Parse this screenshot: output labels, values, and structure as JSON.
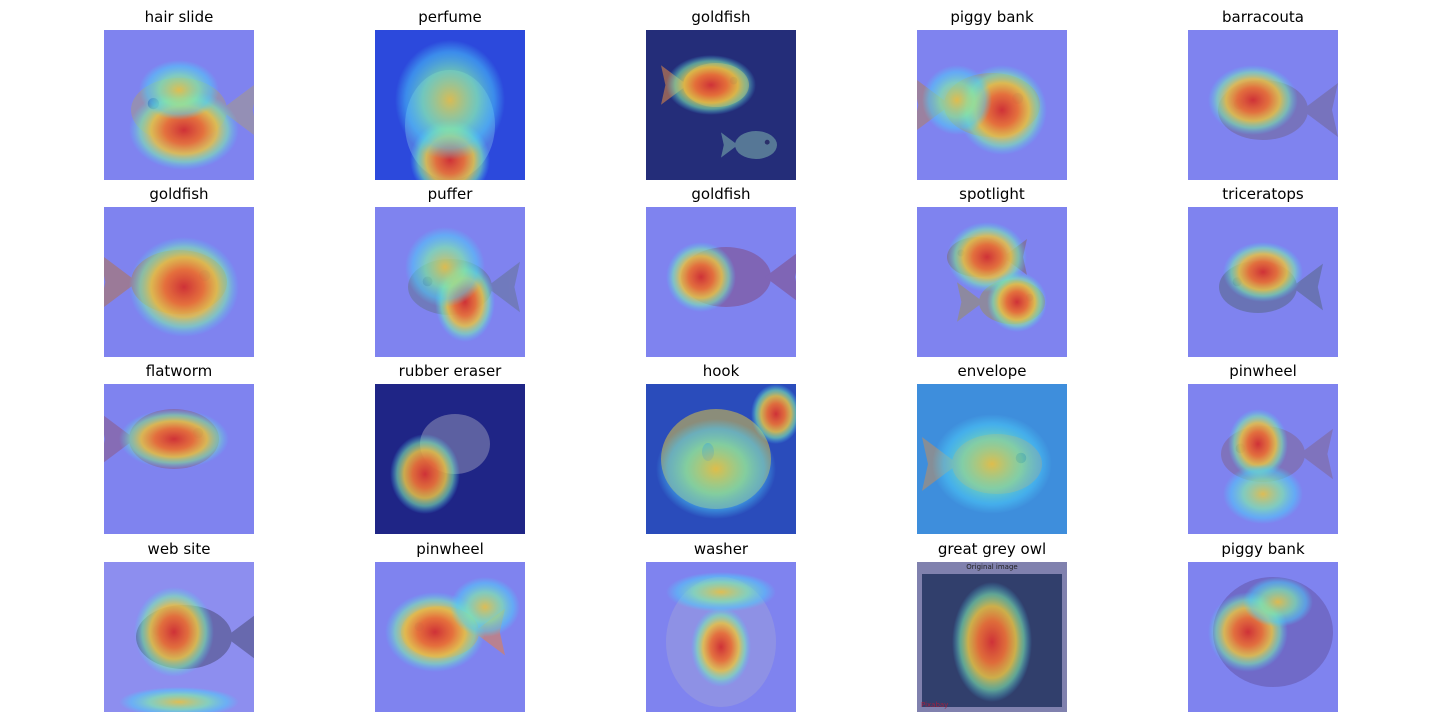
{
  "grid": {
    "rows": [
      {
        "cells": [
          {
            "label": "hair slide",
            "scene": "goldfish-face"
          },
          {
            "label": "perfume",
            "scene": "fishbowl"
          },
          {
            "label": "goldfish",
            "scene": "dark-goldfish"
          },
          {
            "label": "piggy bank",
            "scene": "goldfish-side"
          },
          {
            "label": "barracouta",
            "scene": "fish-body"
          }
        ]
      },
      {
        "cells": [
          {
            "label": "goldfish",
            "scene": "fantail"
          },
          {
            "label": "puffer",
            "scene": "fantail-2"
          },
          {
            "label": "goldfish",
            "scene": "round-fish"
          },
          {
            "label": "spotlight",
            "scene": "two-fish"
          },
          {
            "label": "triceratops",
            "scene": "fantail-3"
          }
        ]
      },
      {
        "cells": [
          {
            "label": "flatworm",
            "scene": "blob-fish"
          },
          {
            "label": "rubber eraser",
            "scene": "dark-blob"
          },
          {
            "label": "hook",
            "scene": "cartoon-fish"
          },
          {
            "label": "envelope",
            "scene": "drawn-fish"
          },
          {
            "label": "pinwheel",
            "scene": "outline-fish"
          }
        ]
      },
      {
        "cells": [
          {
            "label": "web site",
            "scene": "sketch-fish"
          },
          {
            "label": "pinwheel",
            "scene": "orange-goldfish"
          },
          {
            "label": "washer",
            "scene": "bowl-fish"
          },
          {
            "label": "great grey owl",
            "scene": "owl-portrait",
            "caption": "Original image",
            "watermark": "Pixabay"
          },
          {
            "label": "piggy bank",
            "scene": "toy-fish"
          }
        ]
      }
    ]
  },
  "colors": {
    "tint": "#7f83f0",
    "heat_hot": "#e02010",
    "heat_warm": "#ffd020",
    "heat_mid": "#80ffa0",
    "heat_cool": "#40e0ff"
  }
}
